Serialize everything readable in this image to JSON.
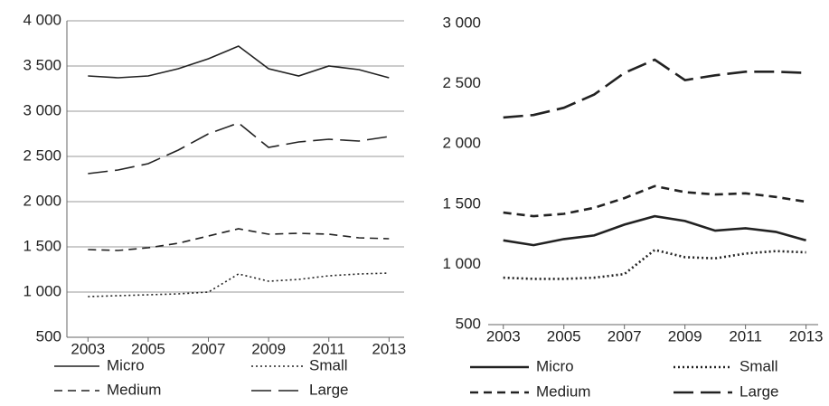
{
  "chart_data": [
    {
      "type": "line",
      "x": [
        2003,
        2004,
        2005,
        2006,
        2007,
        2008,
        2009,
        2010,
        2011,
        2012,
        2013
      ],
      "xlim": [
        2002.3,
        2013.5
      ],
      "xticks": [
        2003,
        2005,
        2007,
        2009,
        2011,
        2013
      ],
      "ylim": [
        500,
        4000
      ],
      "yticks": [
        500,
        {
          "value": 1000,
          "label": "1 000"
        },
        {
          "value": 1500,
          "label": "1 500"
        },
        {
          "value": 2000,
          "label": "2 000"
        },
        {
          "value": 2500,
          "label": "2 500"
        },
        {
          "value": 3000,
          "label": "3 000"
        },
        {
          "value": 3500,
          "label": "3 500"
        },
        {
          "value": 4000,
          "label": "4 000"
        }
      ],
      "grid": true,
      "legend": "bottom",
      "series": [
        {
          "name": "Micro",
          "color": "#222222",
          "dash": "solid",
          "values": [
            3390,
            3370,
            3390,
            3470,
            3580,
            3720,
            3470,
            3390,
            3500,
            3460,
            3370
          ]
        },
        {
          "name": "Small",
          "color": "#222222",
          "dash": "dotted",
          "values": [
            950,
            960,
            970,
            980,
            1000,
            1200,
            1120,
            1140,
            1180,
            1200,
            1210
          ]
        },
        {
          "name": "Medium",
          "color": "#222222",
          "dash": "dashed",
          "values": [
            1470,
            1460,
            1490,
            1540,
            1620,
            1700,
            1640,
            1650,
            1640,
            1600,
            1590
          ]
        },
        {
          "name": "Large",
          "color": "#222222",
          "dash": "long-dash",
          "values": [
            2310,
            2350,
            2420,
            2570,
            2750,
            2870,
            2600,
            2660,
            2690,
            2670,
            2720
          ]
        }
      ]
    },
    {
      "type": "line",
      "x": [
        2003,
        2004,
        2005,
        2006,
        2007,
        2008,
        2009,
        2010,
        2011,
        2012,
        2013
      ],
      "xlim": [
        2002.5,
        2013.4
      ],
      "xticks": [
        2003,
        2005,
        2007,
        2009,
        2011,
        2013
      ],
      "ylim": [
        500,
        3000
      ],
      "yticks": [
        500,
        {
          "value": 1000,
          "label": "1 000"
        },
        {
          "value": 1500,
          "label": "1 500"
        },
        {
          "value": 2000,
          "label": "2 000"
        },
        {
          "value": 2500,
          "label": "2 500"
        },
        {
          "value": 3000,
          "label": "3 000"
        }
      ],
      "grid": false,
      "legend": "bottom",
      "series": [
        {
          "name": "Micro",
          "color": "#222222",
          "dash": "solid",
          "values": [
            1200,
            1160,
            1210,
            1240,
            1330,
            1400,
            1360,
            1280,
            1300,
            1270,
            1200
          ]
        },
        {
          "name": "Small",
          "color": "#222222",
          "dash": "dotted",
          "values": [
            890,
            880,
            880,
            890,
            920,
            1120,
            1060,
            1050,
            1090,
            1110,
            1100
          ]
        },
        {
          "name": "Medium",
          "color": "#222222",
          "dash": "dashed",
          "values": [
            1430,
            1400,
            1420,
            1470,
            1550,
            1650,
            1600,
            1580,
            1590,
            1560,
            1520
          ]
        },
        {
          "name": "Large",
          "color": "#222222",
          "dash": "long-dash",
          "values": [
            2220,
            2240,
            2300,
            2410,
            2590,
            2700,
            2530,
            2570,
            2600,
            2600,
            2590
          ]
        }
      ]
    }
  ]
}
